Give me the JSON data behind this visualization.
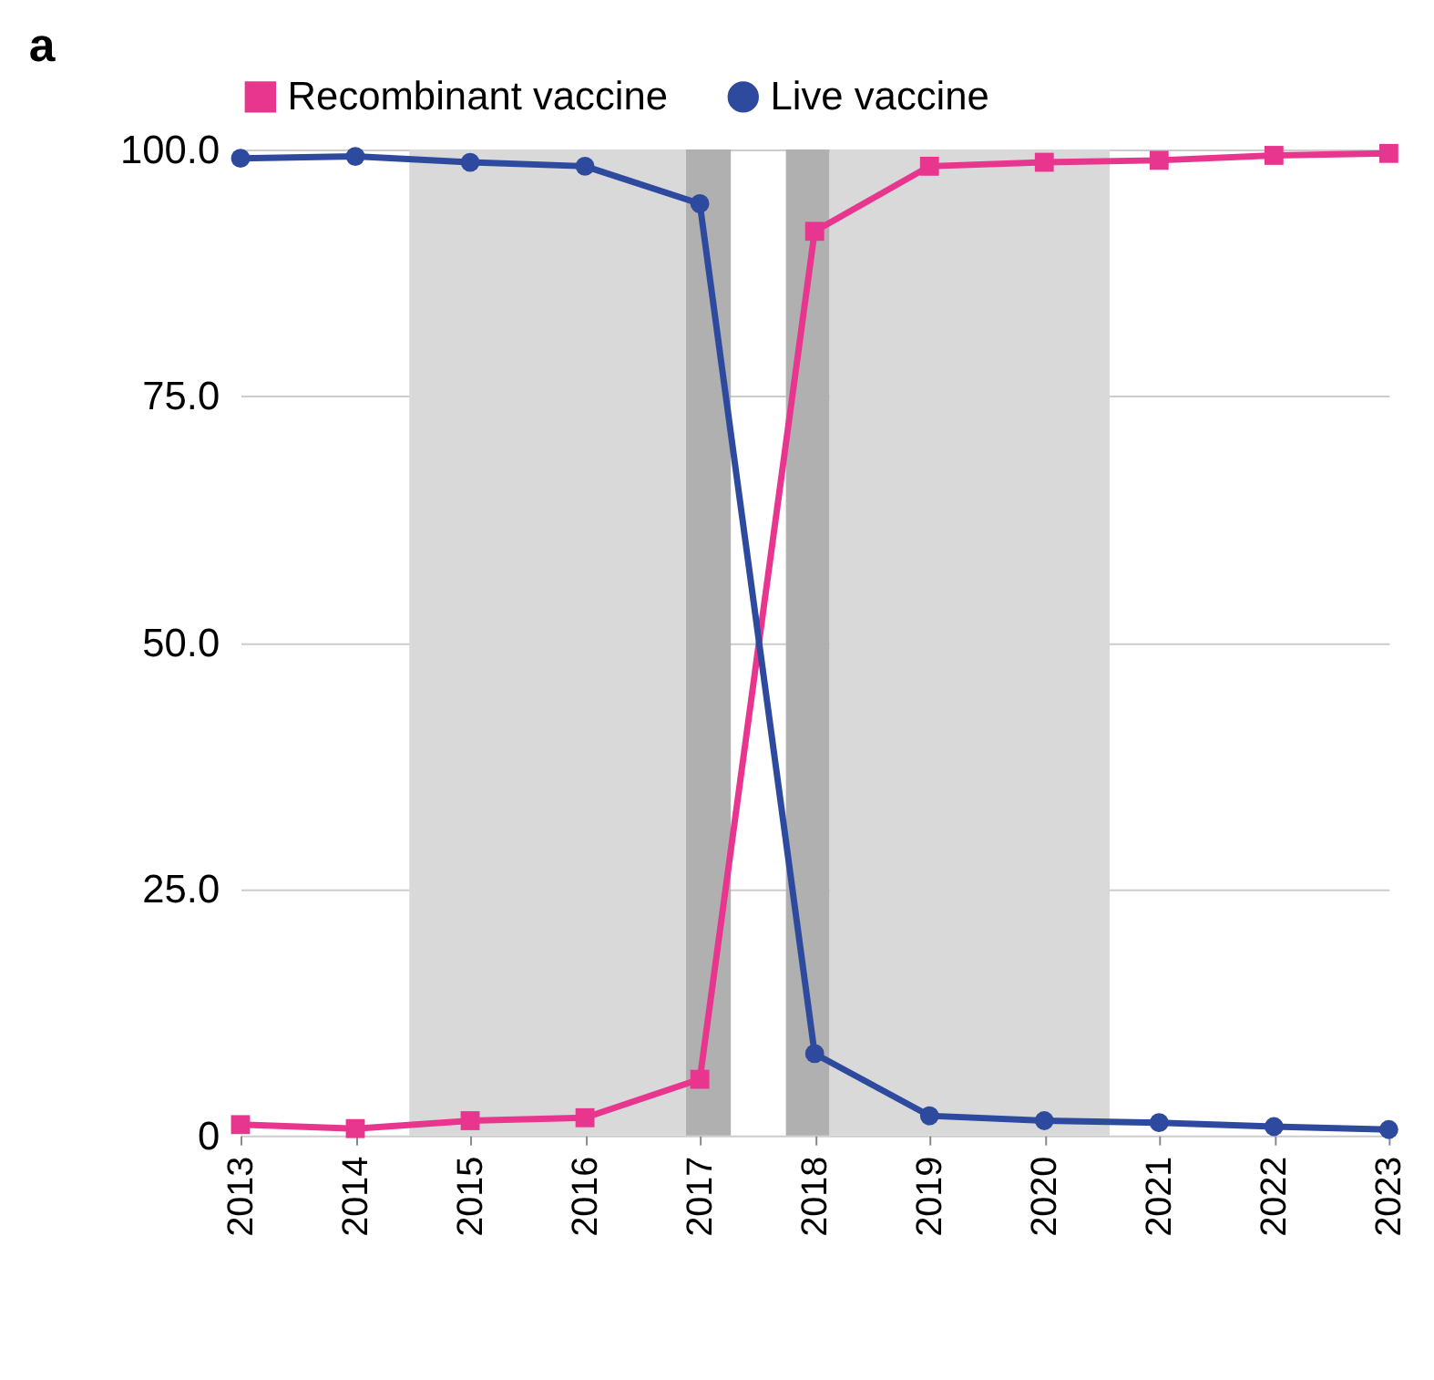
{
  "chart_data": {
    "type": "line",
    "title": "a",
    "x": [
      2013,
      2014,
      2015,
      2016,
      2017,
      2018,
      2019,
      2020,
      2021,
      2022,
      2023
    ],
    "series": [
      {
        "name": "Recombinant vaccine",
        "color": "#e8368f",
        "marker": "square",
        "values": [
          1.1,
          0.7,
          1.5,
          1.8,
          5.7,
          91.7,
          98.3,
          98.7,
          98.9,
          99.4,
          99.6
        ]
      },
      {
        "name": "Live vaccine",
        "color": "#2e4a9e",
        "marker": "circle",
        "values": [
          99.1,
          99.3,
          98.7,
          98.3,
          94.5,
          8.3,
          2.0,
          1.5,
          1.3,
          0.9,
          0.6
        ]
      }
    ],
    "xlim": [
      2013,
      2023
    ],
    "xticks": [
      2013,
      2014,
      2015,
      2016,
      2017,
      2018,
      2019,
      2020,
      2021,
      2022,
      2023
    ],
    "ylim": [
      0,
      100
    ],
    "yticks": [
      {
        "value": 0,
        "label": "0"
      },
      {
        "value": 25,
        "label": "25.0"
      },
      {
        "value": 50,
        "label": "50.0"
      },
      {
        "value": 75,
        "label": "75.0"
      },
      {
        "value": 100,
        "label": "100.0"
      }
    ],
    "bands": [
      {
        "axis": "x",
        "from": 2014.47,
        "to": 2016.88,
        "color": "#d9d9d9"
      },
      {
        "axis": "x",
        "from": 2016.88,
        "to": 2017.27,
        "color": "#b0b0b0"
      },
      {
        "axis": "x",
        "from": 2017.75,
        "to": 2018.13,
        "color": "#b0b0b0"
      },
      {
        "axis": "x",
        "from": 2018.13,
        "to": 2020.57,
        "color": "#d9d9d9"
      }
    ],
    "grid": "y",
    "legend": "top",
    "line_style": "solid"
  }
}
